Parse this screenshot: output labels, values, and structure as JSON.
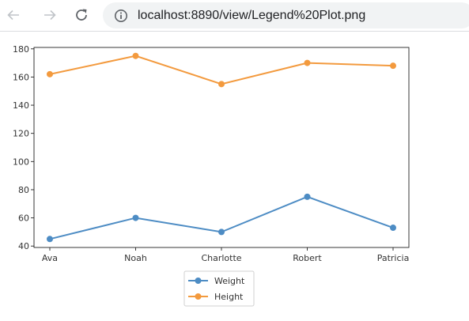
{
  "browser": {
    "url": "localhost:8890/view/Legend%20Plot.png",
    "icons": [
      "back-arrow-icon",
      "forward-arrow-icon",
      "reload-icon",
      "info-icon"
    ]
  },
  "chart_data": {
    "type": "line",
    "categories": [
      "Ava",
      "Noah",
      "Charlotte",
      "Robert",
      "Patricia"
    ],
    "series": [
      {
        "name": "Weight",
        "values": [
          45,
          60,
          50,
          75,
          53
        ],
        "color": "#4d8cc4"
      },
      {
        "name": "Height",
        "values": [
          162,
          175,
          155,
          170,
          168
        ],
        "color": "#f39a3e"
      }
    ],
    "title": "",
    "xlabel": "",
    "ylabel": "",
    "ylim": [
      39,
      181
    ],
    "yticks": [
      40,
      60,
      80,
      100,
      120,
      140,
      160,
      180
    ],
    "grid": false,
    "legend": "bottom-center"
  }
}
